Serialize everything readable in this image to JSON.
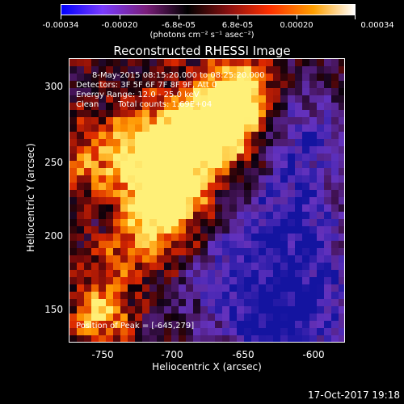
{
  "colorbar": {
    "ticks": [
      "-0.00034",
      "-0.00020",
      "-6.8e-05",
      "6.8e-05",
      "0.00020",
      "0.00034"
    ],
    "units": "(photons cm⁻² s⁻¹ asec⁻²)",
    "colors": [
      "#0000ff",
      "#7a3cff",
      "#7a1e7a",
      "#000000",
      "#8a1010",
      "#ff3000",
      "#ffa000",
      "#ffffff"
    ]
  },
  "title": "Reconstructed RHESSI Image",
  "info": {
    "line1": "8-May-2015 08:15:20.000 to 08:25:20.000",
    "line2": "Detectors: 3F 5F 6F 7F 8F 9F, Att 0",
    "line3": "Energy Range: 12.0 - 25.0 keV",
    "line4_a": "Clean",
    "line4_b": "Total counts: 1.69E+04",
    "peak": "Position of Peak = [-645,279]"
  },
  "axes": {
    "xlabel": "Heliocentric X (arcsec)",
    "ylabel": "Heliocentric Y (arcsec)",
    "xticks": [
      "-750",
      "-700",
      "-650",
      "-600"
    ],
    "yticks": [
      "300",
      "250",
      "200",
      "150"
    ]
  },
  "datestamp": "17-Oct-2017 19:18"
}
